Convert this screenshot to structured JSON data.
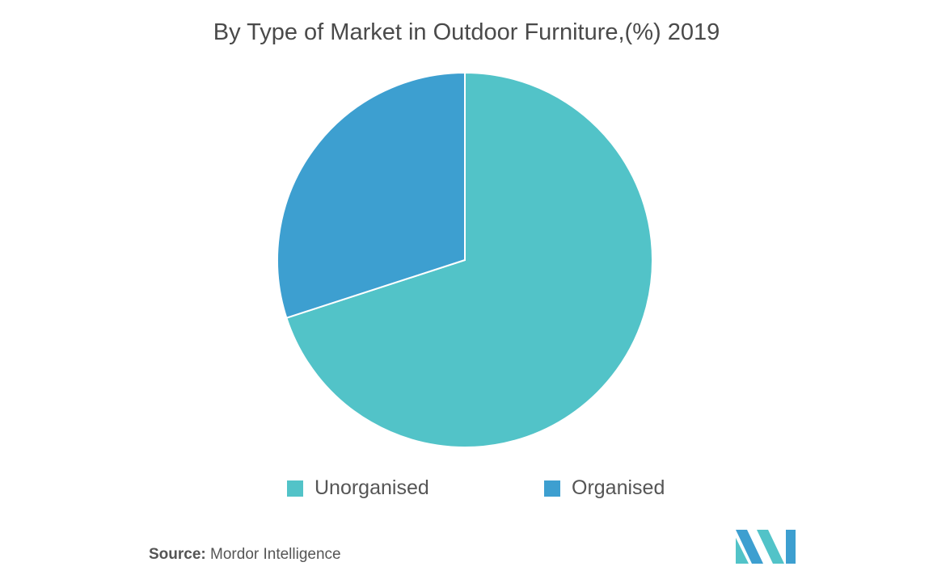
{
  "chart_data": {
    "type": "pie",
    "title": "By Type of Market in Outdoor Furniture,(%) 2019",
    "categories": [
      "Unorganised",
      "Organised"
    ],
    "values": [
      70,
      30
    ],
    "colors": [
      "#52c3c8",
      "#3d9fd0"
    ],
    "legend_position": "bottom",
    "start_angle_deg": 0,
    "direction": "clockwise"
  },
  "source": {
    "label": "Source:",
    "text": "Mordor Intelligence"
  },
  "logo": {
    "icon": "mordor-intelligence-logo",
    "colors": [
      "#52c3c8",
      "#3d9fd0"
    ]
  }
}
